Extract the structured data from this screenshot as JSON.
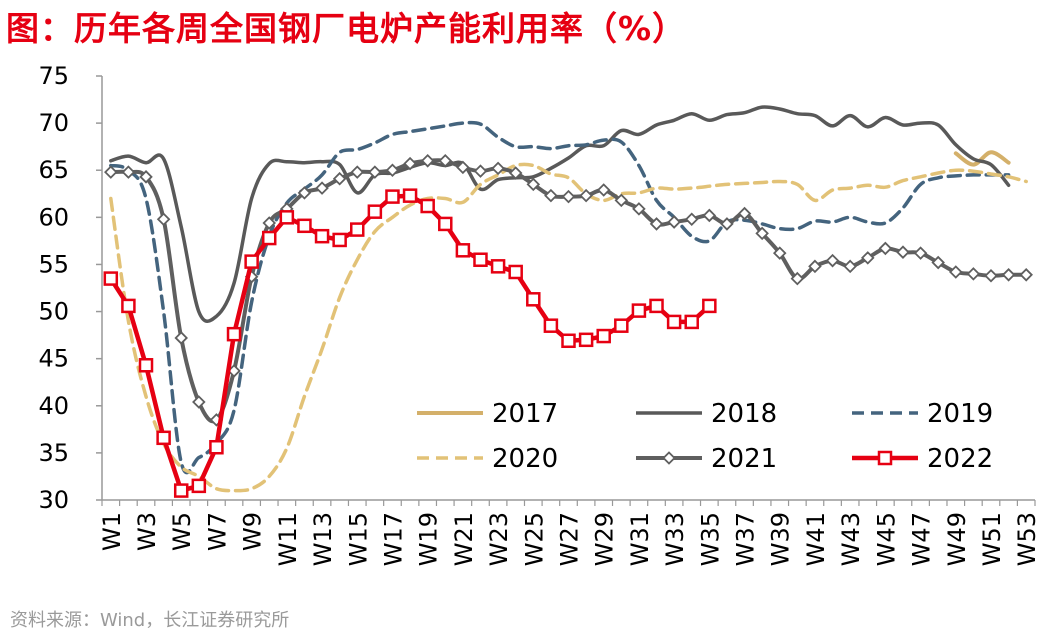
{
  "title": "图：历年各周全国钢厂电炉产能利用率（%）",
  "source": "资料来源：Wind，长江证券研究所",
  "colors": {
    "2017": "#d4b06a",
    "2018": "#595959",
    "2019": "#44647e",
    "2020": "#e2c277",
    "2021": "#5f5f5f",
    "2022": "#e60012"
  },
  "chart_data": {
    "type": "line",
    "title": "历年各周全国钢厂电炉产能利用率（%）",
    "xlabel": "",
    "ylabel": "",
    "ylim": [
      30,
      75
    ],
    "yticks": [
      30,
      35,
      40,
      45,
      50,
      55,
      60,
      65,
      70,
      75
    ],
    "categories": [
      "W1",
      "W2",
      "W3",
      "W4",
      "W5",
      "W6",
      "W7",
      "W8",
      "W9",
      "W10",
      "W11",
      "W12",
      "W13",
      "W14",
      "W15",
      "W16",
      "W17",
      "W18",
      "W19",
      "W20",
      "W21",
      "W22",
      "W23",
      "W24",
      "W25",
      "W26",
      "W27",
      "W28",
      "W29",
      "W30",
      "W31",
      "W32",
      "W33",
      "W34",
      "W35",
      "W36",
      "W37",
      "W38",
      "W39",
      "W40",
      "W41",
      "W42",
      "W43",
      "W44",
      "W45",
      "W46",
      "W47",
      "W48",
      "W49",
      "W50",
      "W51",
      "W52",
      "W53"
    ],
    "xtick_labels": [
      "W1",
      "W3",
      "W5",
      "W7",
      "W9",
      "W11",
      "W13",
      "W15",
      "W17",
      "W19",
      "W21",
      "W23",
      "W25",
      "W27",
      "W29",
      "W31",
      "W33",
      "W35",
      "W37",
      "W39",
      "W41",
      "W43",
      "W45",
      "W47",
      "W49",
      "W51",
      "W53"
    ],
    "legend": [
      "2017",
      "2018",
      "2019",
      "2020",
      "2021",
      "2022"
    ],
    "legend_position": "bottom-right",
    "series": [
      {
        "name": "2017",
        "style": "solid",
        "marker": "none",
        "values": [
          null,
          null,
          null,
          null,
          null,
          null,
          null,
          null,
          null,
          null,
          null,
          null,
          null,
          null,
          null,
          null,
          null,
          null,
          null,
          null,
          null,
          null,
          null,
          null,
          null,
          null,
          null,
          null,
          null,
          null,
          null,
          null,
          null,
          null,
          null,
          null,
          null,
          null,
          null,
          null,
          null,
          null,
          null,
          null,
          null,
          null,
          null,
          null,
          66.8,
          65.6,
          66.9,
          65.8,
          null
        ]
      },
      {
        "name": "2018",
        "style": "solid",
        "marker": "none",
        "values": [
          66,
          66.5,
          65.8,
          66.2,
          59,
          50,
          49.5,
          53,
          62,
          65.7,
          65.9,
          65.8,
          65.9,
          65.6,
          62.6,
          64.5,
          64.7,
          65.3,
          65.8,
          65.5,
          65.7,
          63,
          64,
          64.2,
          64.3,
          65.2,
          66.3,
          67.6,
          67.6,
          69.2,
          68.8,
          69.8,
          70.3,
          71,
          70.3,
          70.9,
          71.1,
          71.7,
          71.5,
          71,
          70.8,
          69.7,
          70.8,
          69.6,
          70.6,
          69.8,
          70,
          69.8,
          67.7,
          66.2,
          65.6,
          63.4,
          null
        ]
      },
      {
        "name": "2019",
        "style": "dashed",
        "marker": "none",
        "values": [
          65.5,
          65,
          62,
          50,
          34,
          34.5,
          36,
          39.5,
          51,
          58,
          61.5,
          63,
          64.5,
          66.9,
          67.2,
          67.9,
          68.8,
          69.1,
          69.4,
          69.7,
          70,
          69.9,
          68.5,
          67.5,
          67.5,
          67.3,
          67.6,
          67.7,
          68.2,
          68,
          65.5,
          61.8,
          60,
          58,
          57.5,
          59.5,
          59.7,
          59.3,
          58.8,
          58.8,
          59.6,
          59.5,
          60,
          59.5,
          59.4,
          61,
          63.5,
          64.2,
          64.4,
          64.5,
          64.5,
          64.5,
          null
        ]
      },
      {
        "name": "2020",
        "style": "dashed",
        "marker": "none",
        "values": [
          62,
          49,
          41,
          36,
          33.5,
          32.5,
          31.2,
          31,
          31.2,
          32.5,
          35.5,
          41,
          46,
          51.5,
          55.5,
          58.5,
          60,
          61.3,
          62,
          62,
          61.6,
          63.5,
          64.5,
          65.5,
          65.5,
          64.6,
          64.2,
          62.5,
          61.8,
          62.5,
          62.6,
          63.1,
          63,
          63.1,
          63.3,
          63.5,
          63.6,
          63.7,
          63.8,
          63.5,
          61.8,
          62.9,
          63.1,
          63.4,
          63.2,
          63.9,
          64.3,
          64.7,
          65,
          64.9,
          64.6,
          64.3,
          63.8
        ]
      },
      {
        "name": "2021",
        "style": "solid",
        "marker": "diamond",
        "values": [
          64.8,
          64.8,
          64.3,
          59.8,
          47.2,
          40.4,
          38.5,
          43.7,
          53.7,
          59.4,
          60.9,
          62.6,
          63.1,
          64.1,
          64.8,
          64.8,
          65,
          65.7,
          66,
          66,
          65.3,
          64.9,
          65.2,
          64.7,
          63.5,
          62.3,
          62.2,
          62.3,
          62.9,
          61.8,
          60.9,
          59.3,
          59.5,
          59.8,
          60.2,
          59.3,
          60.4,
          58.3,
          56.2,
          53.5,
          54.8,
          55.4,
          54.8,
          55.7,
          56.7,
          56.3,
          56.2,
          55.2,
          54.2,
          54,
          53.8,
          53.9,
          53.9
        ]
      },
      {
        "name": "2022",
        "style": "solid",
        "marker": "square",
        "values": [
          53.5,
          50.6,
          44.3,
          36.6,
          31,
          31.5,
          35.6,
          47.6,
          55.3,
          57.8,
          60,
          59.1,
          58,
          57.6,
          58.7,
          60.6,
          62.2,
          62.3,
          61.2,
          59.3,
          56.5,
          55.5,
          54.8,
          54.2,
          51.3,
          48.5,
          46.9,
          47,
          47.4,
          48.5,
          50.1,
          50.6,
          48.9,
          48.9,
          50.6,
          null,
          null,
          null,
          null,
          null,
          null,
          null,
          null,
          null,
          null,
          null,
          null,
          null,
          null,
          null,
          null,
          null,
          null
        ]
      }
    ]
  }
}
